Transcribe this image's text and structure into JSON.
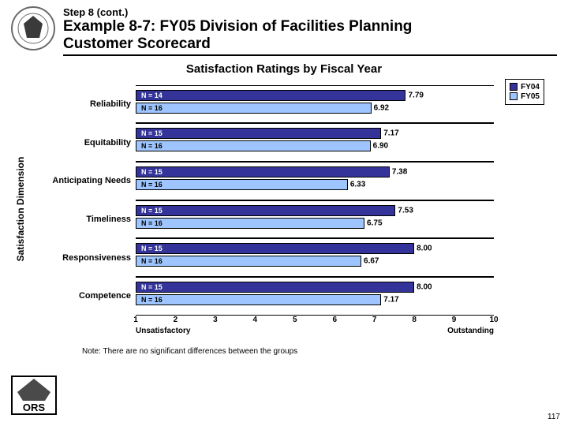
{
  "header": {
    "step_line": "Step 8 (cont.)",
    "title_line1": "Example 8-7: FY05 Division of Facilities Planning",
    "title_line2": "Customer Scorecard"
  },
  "chart": {
    "title": "Satisfaction Ratings by Fiscal Year",
    "type": "grouped-horizontal-bar",
    "y_axis_label": "Satisfaction Dimension",
    "x_axis": {
      "min": 1,
      "max": 10,
      "ticks": [
        1,
        2,
        3,
        4,
        5,
        6,
        7,
        8,
        9,
        10
      ],
      "left_anchor": "Unsatisfactory",
      "right_anchor": "Outstanding"
    },
    "series": [
      {
        "key": "fy04",
        "label": "FY04",
        "color": "#333399"
      },
      {
        "key": "fy05",
        "label": "FY05",
        "color": "#9ec5ff"
      }
    ],
    "categories": [
      {
        "label": "Reliability",
        "fy04": {
          "value": 7.79,
          "n": 14
        },
        "fy05": {
          "value": 6.92,
          "n": 16
        }
      },
      {
        "label": "Equitability",
        "fy04": {
          "value": 7.17,
          "n": 15
        },
        "fy05": {
          "value": 6.9,
          "n": 16
        }
      },
      {
        "label": "Anticipating Needs",
        "fy04": {
          "value": 7.38,
          "n": 15
        },
        "fy05": {
          "value": 6.33,
          "n": 16
        }
      },
      {
        "label": "Timeliness",
        "fy04": {
          "value": 7.53,
          "n": 15
        },
        "fy05": {
          "value": 6.75,
          "n": 16
        }
      },
      {
        "label": "Responsiveness",
        "fy04": {
          "value": 8.0,
          "n": 15
        },
        "fy05": {
          "value": 6.67,
          "n": 16
        }
      },
      {
        "label": "Competence",
        "fy04": {
          "value": 8.0,
          "n": 15
        },
        "fy05": {
          "value": 7.17,
          "n": 16
        }
      }
    ],
    "bar_border_color": "#000000",
    "background_color": "#ffffff",
    "value_fontsize": 10,
    "n_fontsize": 9,
    "category_fontsize": 11,
    "n_prefix": "N = "
  },
  "footer": {
    "note": "Note:  There are no significant differences between the groups"
  },
  "page_number": "117",
  "logos": {
    "nih_outer_ring": "#6b6b6b",
    "nih_center": "#3a3a3a",
    "ors_border": "#000000",
    "ors_fill": "#4a4a4a",
    "ors_text": "ORS"
  }
}
